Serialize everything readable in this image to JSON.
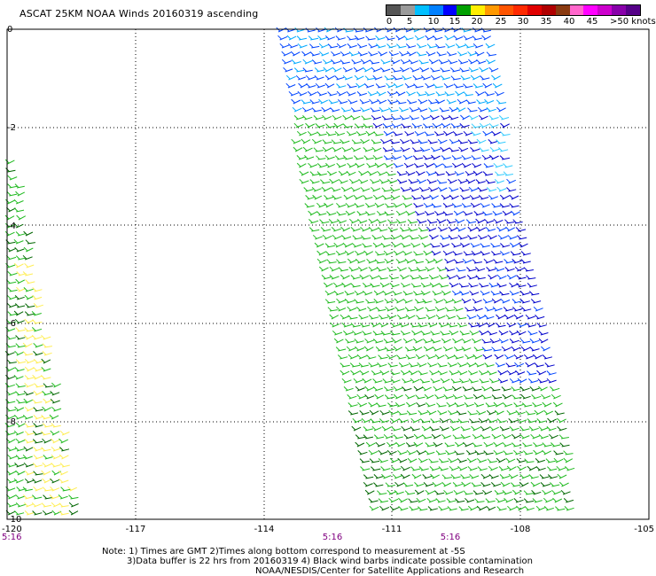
{
  "title": "ASCAT 25KM NOAA Winds 20160319 ascending",
  "legend": {
    "labels": [
      "0",
      "5",
      "10",
      "15",
      "20",
      "25",
      "30",
      "35",
      "40",
      "45",
      ">50 knots"
    ],
    "colors": [
      "#555555",
      "#9a9a9a",
      "#00bfff",
      "#0080ff",
      "#0000ff",
      "#00a000",
      "#ffee00",
      "#ff9900",
      "#ff5500",
      "#ff2a00",
      "#e00000",
      "#b00000",
      "#8a3a10",
      "#ff66cc",
      "#ff00ff",
      "#cc00cc",
      "#8800aa",
      "#550088"
    ]
  },
  "axes": {
    "x_ticks": [
      "-120",
      "-117",
      "-114",
      "-111",
      "-108",
      "-105"
    ],
    "y_ticks": [
      "0",
      "-2",
      "-4",
      "-6",
      "-8",
      "-10"
    ],
    "time_labels": [
      "5:16",
      "5:16",
      "5:16"
    ]
  },
  "swaths": {
    "colors": {
      "blue_dark": "#0000cc",
      "blue": "#0044ff",
      "cyan": "#00aaff",
      "light_cyan": "#33ccff",
      "green": "#22bb22",
      "dark_green": "#006600",
      "yellow": "#ffee55"
    }
  },
  "notes": {
    "line1": "Note: 1) Times are GMT 2)Times along bottom correspond to measurement at -5S",
    "line2": "3)Data buffer is 22 hrs from 20160319 4) Black wind barbs indicate possible contamination",
    "line3": "NOAA/NESDIS/Center for Satellite Applications and Research"
  }
}
